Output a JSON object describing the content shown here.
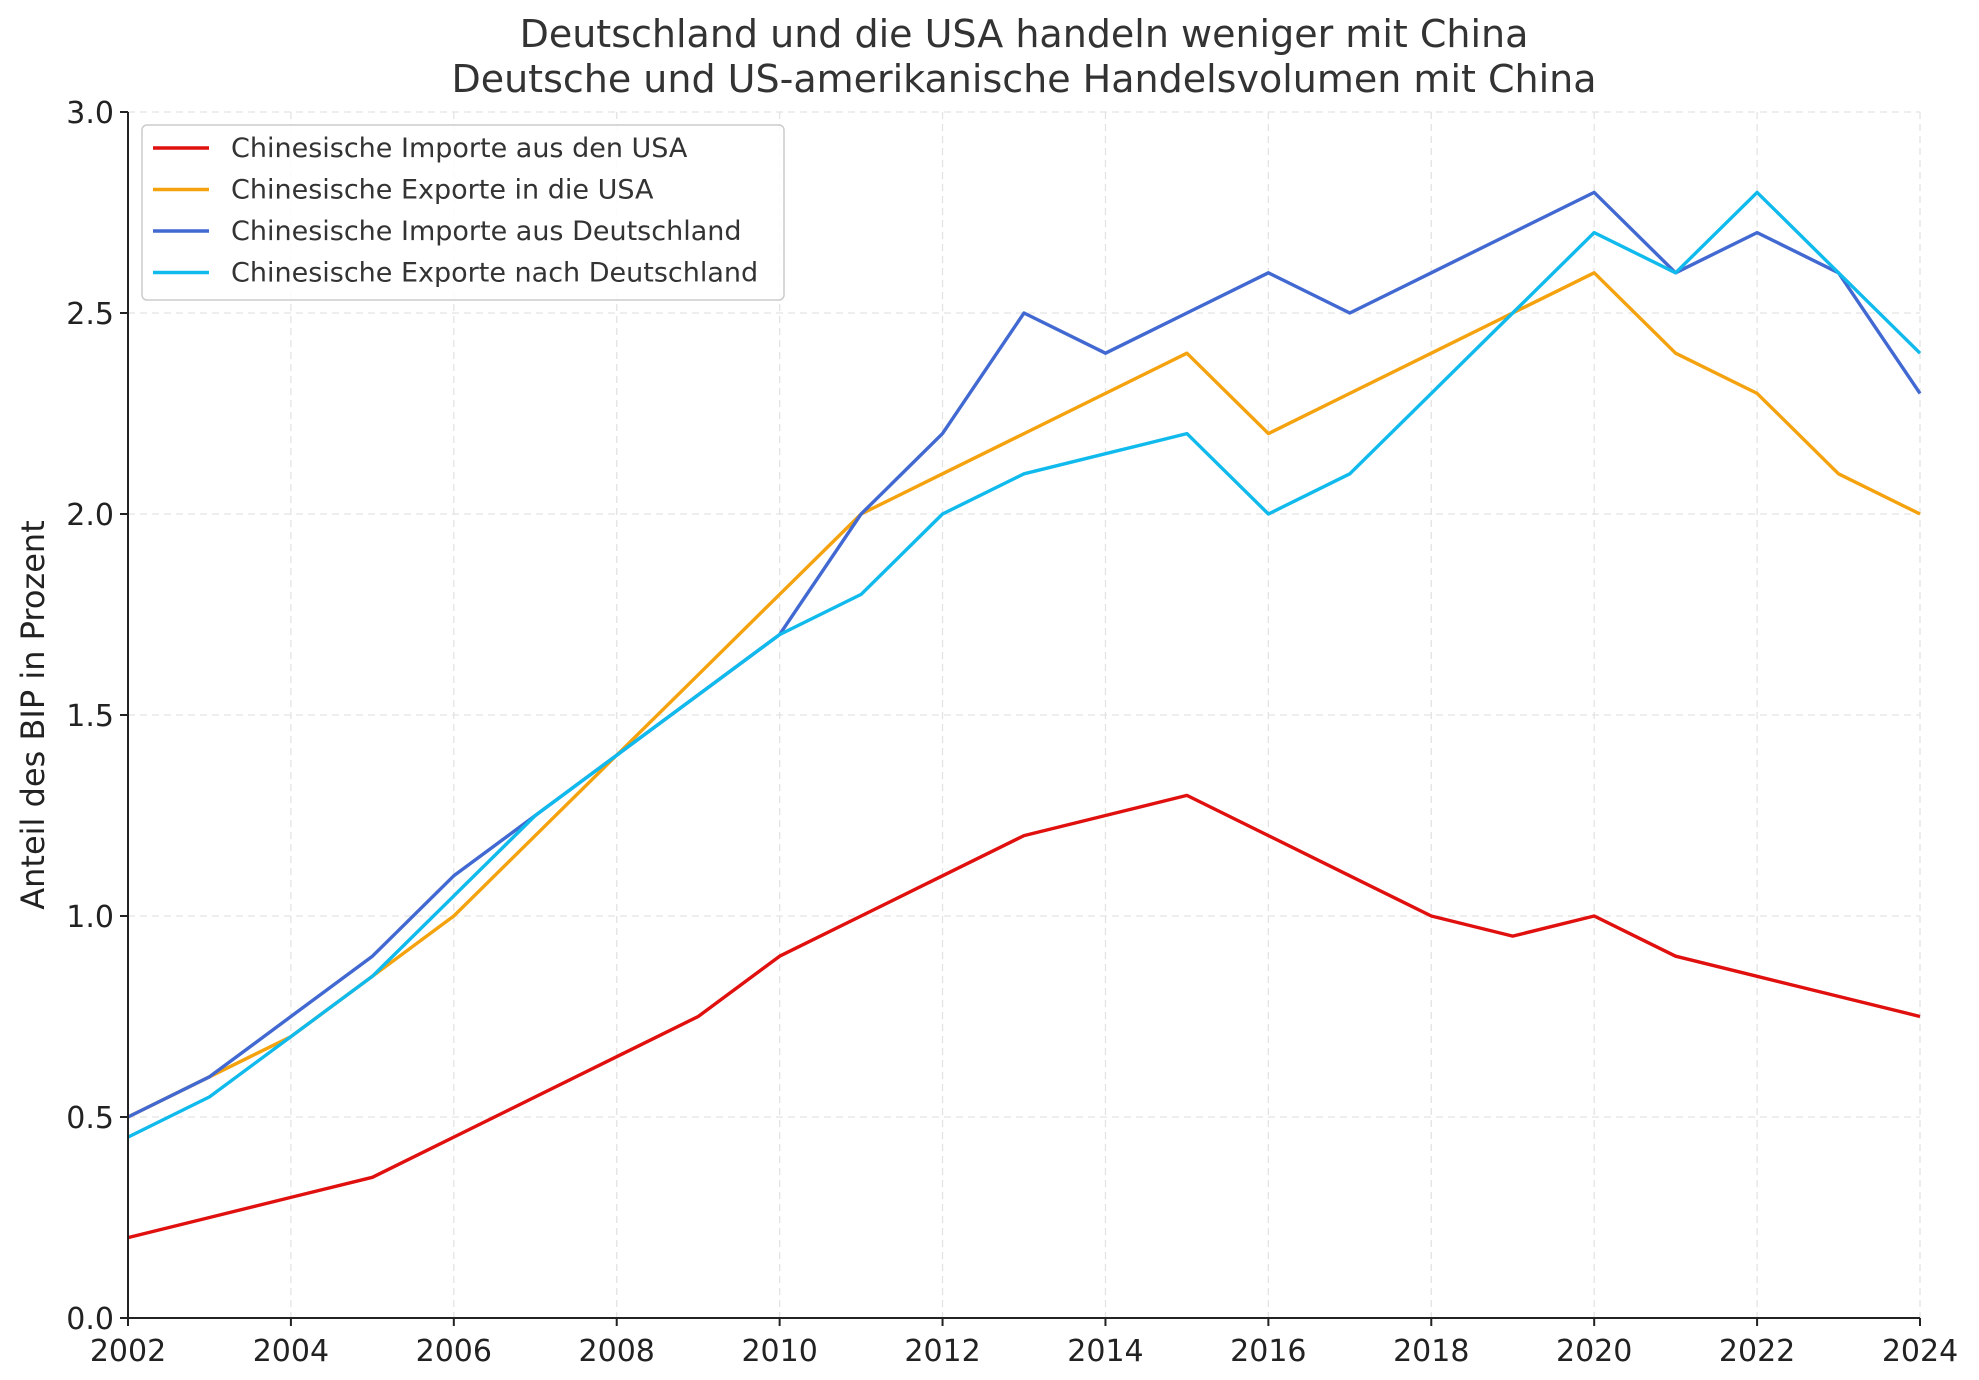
{
  "chart_data": {
    "type": "line",
    "title": "Deutschland und die USA handeln weniger mit China",
    "subtitle": "Deutsche und US-amerikanische Handelsvolumen mit China",
    "xlabel": "",
    "ylabel": "Anteil des BIP in Prozent",
    "xlim": [
      2002,
      2024
    ],
    "ylim": [
      0.0,
      3.0
    ],
    "grid": true,
    "legend_position": "top-left",
    "x": [
      2002,
      2003,
      2004,
      2005,
      2006,
      2007,
      2008,
      2009,
      2010,
      2011,
      2012,
      2013,
      2014,
      2015,
      2016,
      2017,
      2018,
      2019,
      2020,
      2021,
      2022,
      2023,
      2024
    ],
    "x_ticks": [
      "2002",
      "2004",
      "2006",
      "2008",
      "2010",
      "2012",
      "2014",
      "2016",
      "2018",
      "2020",
      "2022",
      "2024"
    ],
    "y_ticks": [
      "0.0",
      "0.5",
      "1.0",
      "1.5",
      "2.0",
      "2.5",
      "3.0"
    ],
    "series": [
      {
        "name": "Chinesische Importe aus den USA",
        "color": "#e0100e",
        "values": [
          0.2,
          0.25,
          0.3,
          0.35,
          0.45,
          0.55,
          0.65,
          0.75,
          0.9,
          1.0,
          1.1,
          1.2,
          1.25,
          1.3,
          1.2,
          1.1,
          1.0,
          0.95,
          1.0,
          0.9,
          0.85,
          0.8,
          0.75
        ]
      },
      {
        "name": "Chinesische Exporte in die USA",
        "color": "#f5a20f",
        "values": [
          0.5,
          0.6,
          0.7,
          0.85,
          1.0,
          1.2,
          1.4,
          1.6,
          1.8,
          2.0,
          2.1,
          2.2,
          2.3,
          2.4,
          2.2,
          2.3,
          2.4,
          2.5,
          2.6,
          2.4,
          2.3,
          2.1,
          2.0
        ]
      },
      {
        "name": "Chinesische Importe aus Deutschland",
        "color": "#4169d1",
        "values": [
          0.5,
          0.6,
          0.75,
          0.9,
          1.1,
          1.25,
          1.4,
          1.55,
          1.7,
          2.0,
          2.2,
          2.5,
          2.4,
          2.5,
          2.6,
          2.5,
          2.6,
          2.7,
          2.8,
          2.6,
          2.7,
          2.6,
          2.3
        ]
      },
      {
        "name": "Chinesische Exporte nach Deutschland",
        "color": "#10baec",
        "values": [
          0.45,
          0.55,
          0.7,
          0.85,
          1.05,
          1.25,
          1.4,
          1.55,
          1.7,
          1.8,
          2.0,
          2.1,
          2.15,
          2.2,
          2.0,
          2.1,
          2.3,
          2.5,
          2.7,
          2.6,
          2.8,
          2.6,
          2.4
        ]
      }
    ]
  }
}
